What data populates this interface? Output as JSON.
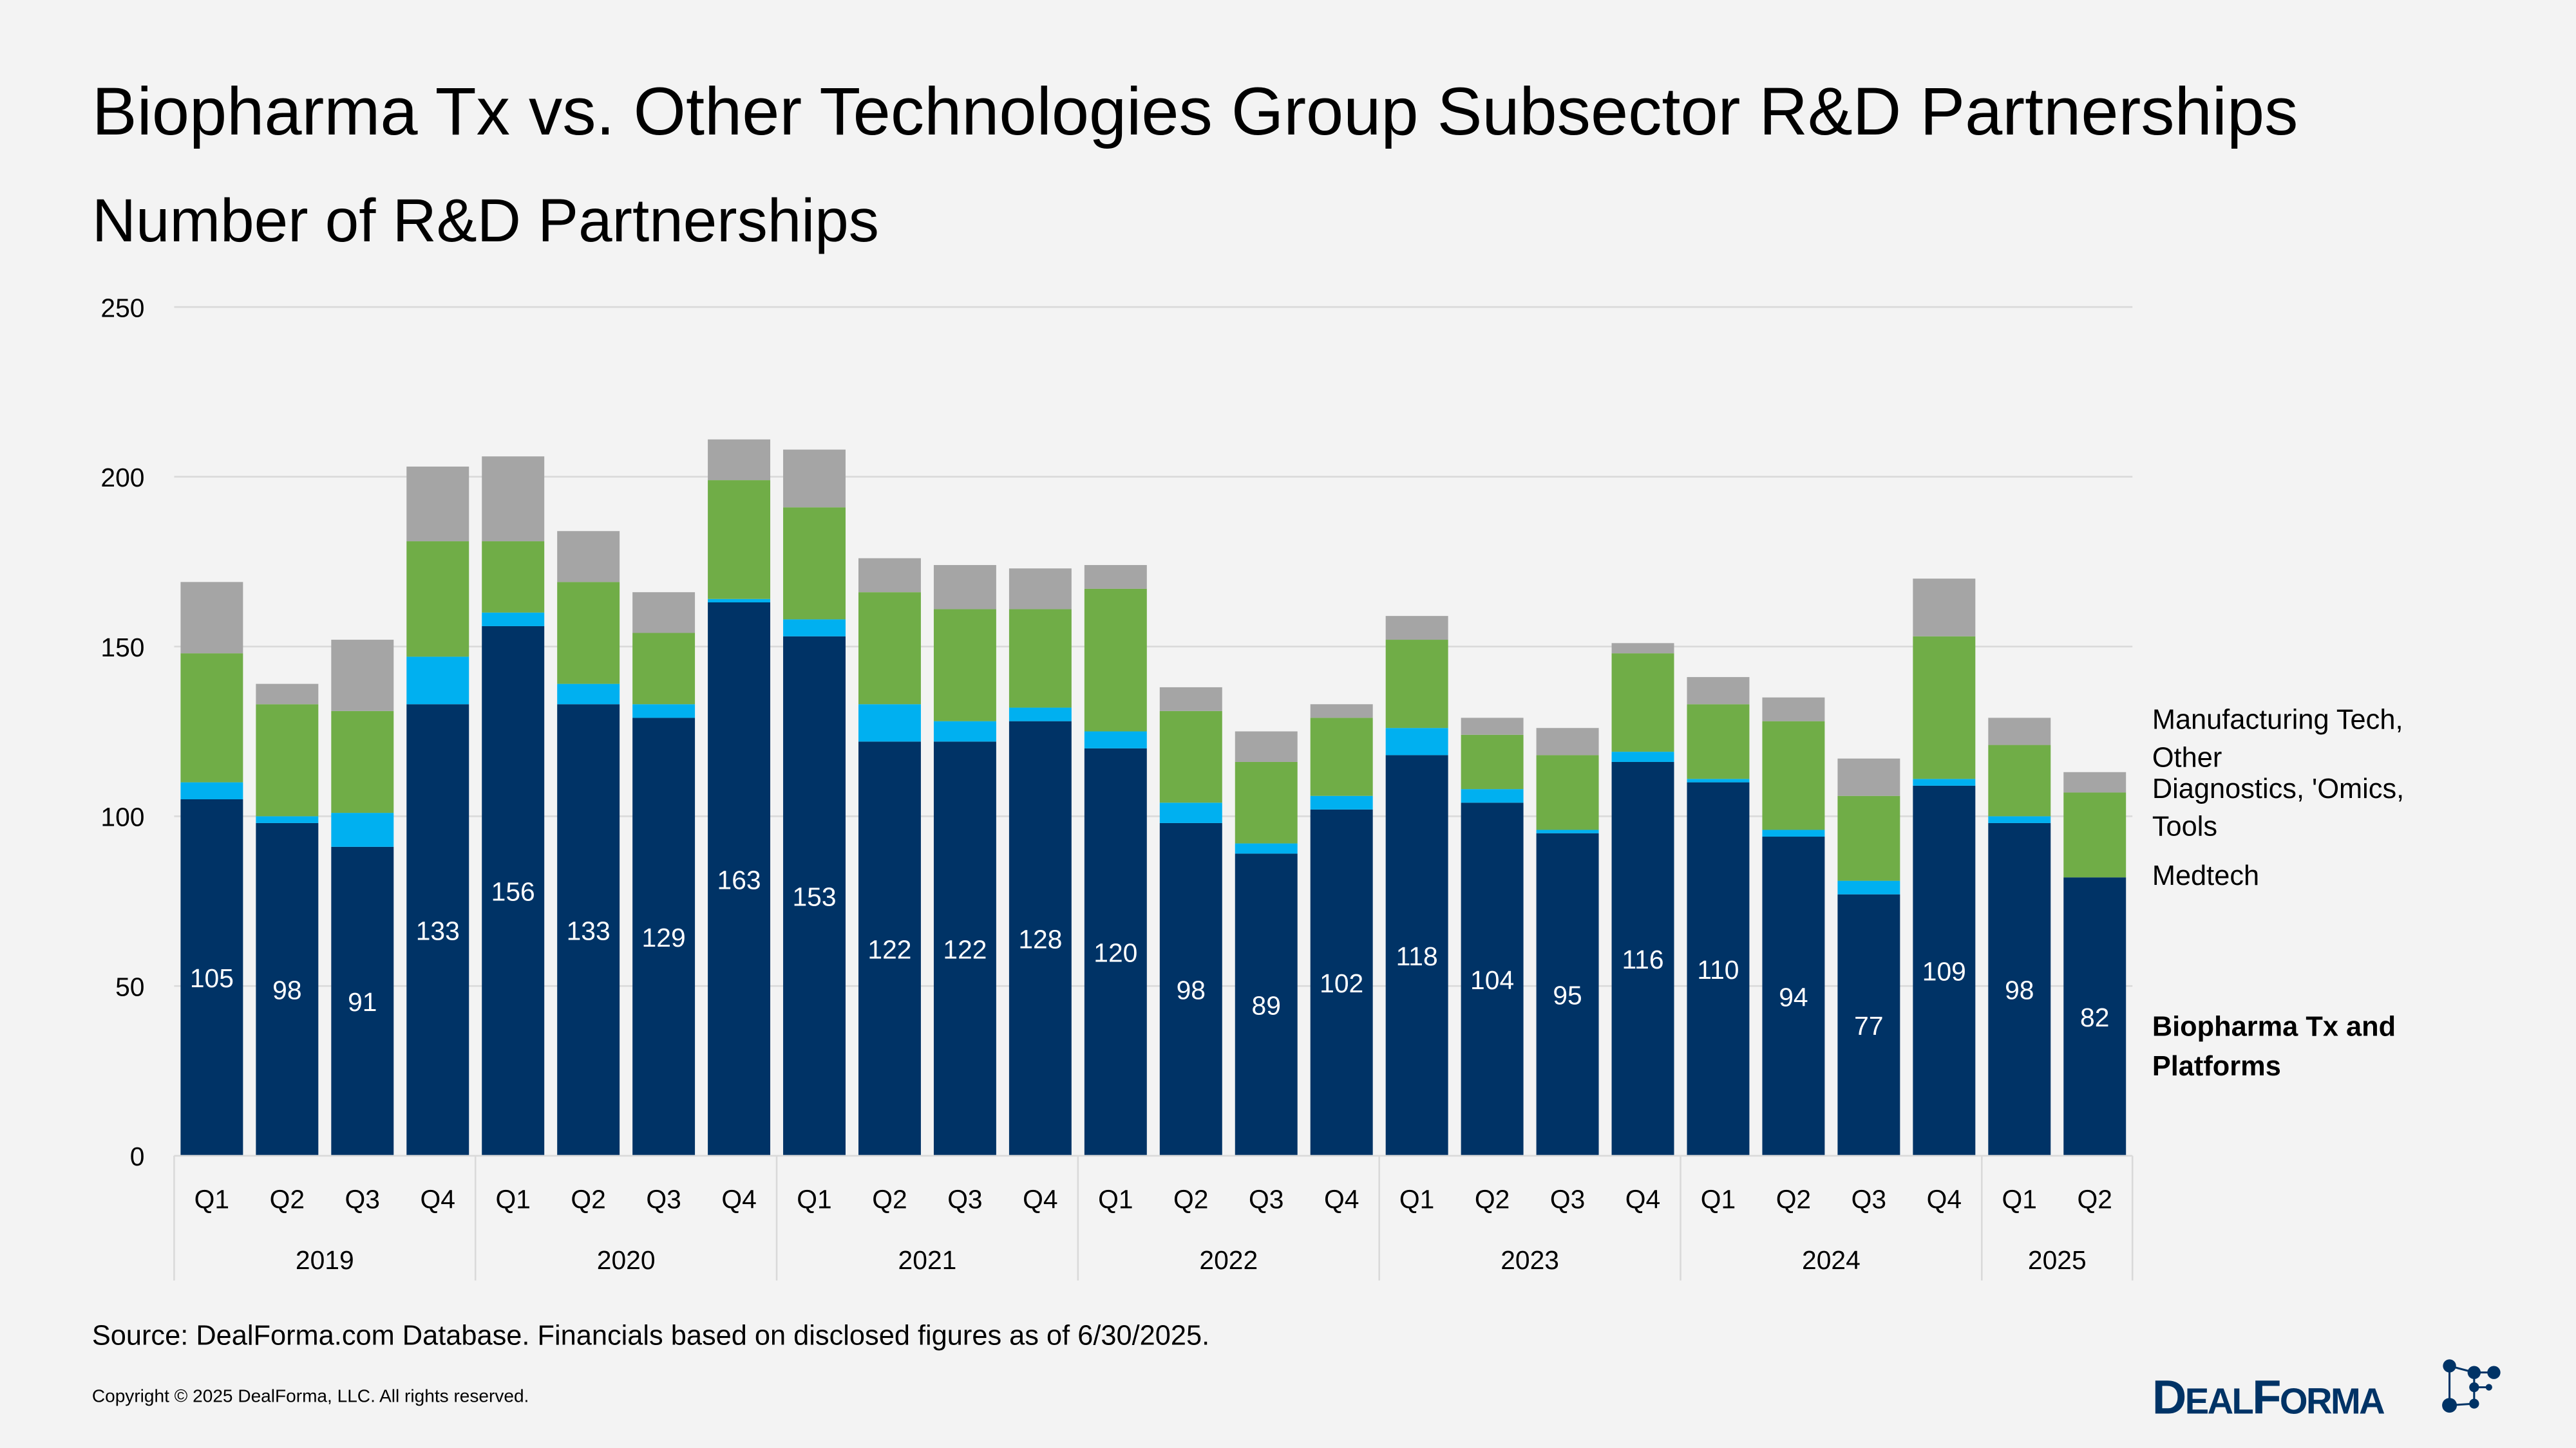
{
  "title": "Biopharma Tx vs. Other Technologies Group Subsector R&D Partnerships",
  "subtitle": "Number of R&D Partnerships",
  "source": "Source: DealForma.com Database. Financials based on disclosed figures as of 6/30/2025.",
  "copyright": "Copyright © 2025 DealForma, LLC. All rights reserved.",
  "logo_text": "DealForma",
  "chart_data": {
    "type": "bar",
    "stacked": true,
    "ylim": [
      0,
      250
    ],
    "yticks": [
      0,
      50,
      100,
      150,
      200,
      250
    ],
    "grid": true,
    "legend_placement": "right",
    "years": [
      "2019",
      "2020",
      "2021",
      "2022",
      "2023",
      "2024",
      "2025"
    ],
    "year_quarter_counts": [
      4,
      4,
      4,
      4,
      4,
      4,
      2
    ],
    "categories": [
      "Q1",
      "Q2",
      "Q3",
      "Q4",
      "Q1",
      "Q2",
      "Q3",
      "Q4",
      "Q1",
      "Q2",
      "Q3",
      "Q4",
      "Q1",
      "Q2",
      "Q3",
      "Q4",
      "Q1",
      "Q2",
      "Q3",
      "Q4",
      "Q1",
      "Q2",
      "Q3",
      "Q4",
      "Q1",
      "Q2"
    ],
    "series": [
      {
        "name": "Biopharma Tx and Platforms",
        "color": "#003366",
        "data_labels": true,
        "values": [
          105,
          98,
          91,
          133,
          156,
          133,
          129,
          163,
          153,
          122,
          122,
          128,
          120,
          98,
          89,
          102,
          118,
          104,
          95,
          116,
          110,
          94,
          77,
          109,
          98,
          82
        ]
      },
      {
        "name": "Medtech",
        "color": "#00b0f0",
        "values": [
          5,
          2,
          10,
          14,
          4,
          6,
          4,
          1,
          5,
          11,
          6,
          4,
          5,
          6,
          3,
          4,
          8,
          4,
          1,
          3,
          1,
          2,
          4,
          2,
          2,
          0
        ]
      },
      {
        "name": "Diagnostics, 'Omics, Tools",
        "color": "#70ad47",
        "values": [
          38,
          33,
          30,
          34,
          21,
          30,
          21,
          35,
          33,
          33,
          33,
          29,
          42,
          27,
          24,
          23,
          26,
          16,
          22,
          29,
          22,
          32,
          25,
          42,
          21,
          25
        ]
      },
      {
        "name": "Manufacturing Tech, Other",
        "color": "#a5a5a5",
        "values": [
          21,
          6,
          21,
          22,
          25,
          15,
          12,
          12,
          17,
          10,
          13,
          12,
          7,
          7,
          9,
          4,
          7,
          5,
          8,
          3,
          8,
          7,
          11,
          17,
          8,
          6
        ]
      }
    ]
  }
}
